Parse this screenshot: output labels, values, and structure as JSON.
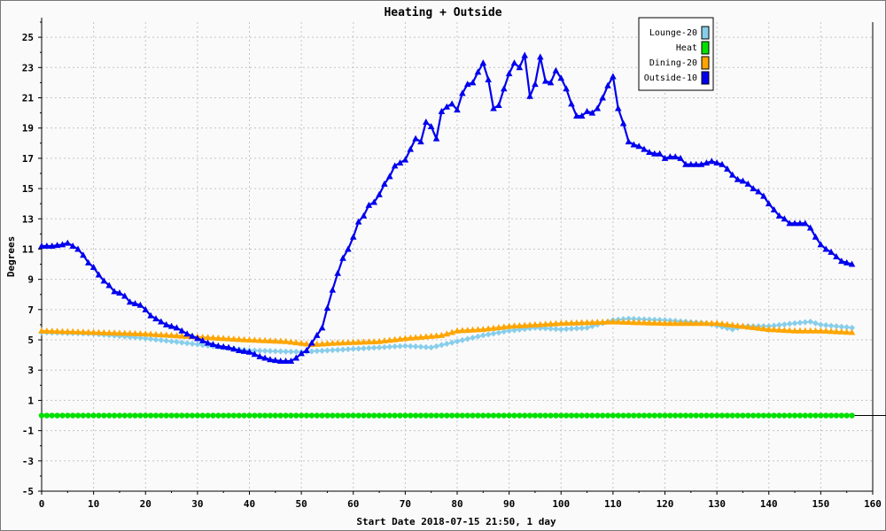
{
  "chart_data": {
    "type": "line",
    "title": "Heating + Outside",
    "xlabel": "Start Date 2018-07-15 21:50, 1 day",
    "ylabel": "Degrees",
    "xlim": [
      0,
      160
    ],
    "ylim": [
      -5,
      26
    ],
    "xticks": [
      "0",
      "10",
      "20",
      "30",
      "40",
      "50",
      "60",
      "70",
      "80",
      "90",
      "100",
      "110",
      "120",
      "130",
      "140",
      "150",
      "160"
    ],
    "yticks": [
      "25",
      "23",
      "21",
      "19",
      "17",
      "15",
      "13",
      "11",
      "9",
      "7",
      "5",
      "3",
      "1",
      "-1",
      "-3",
      "-5"
    ],
    "grid": true,
    "legend_position": "top-right",
    "series": [
      {
        "name": "Lounge-20",
        "color": "#87ceeb",
        "marker": "diamond",
        "points": [
          [
            0,
            5.5
          ],
          [
            10,
            5.4
          ],
          [
            20,
            5.1
          ],
          [
            30,
            4.7
          ],
          [
            40,
            4.3
          ],
          [
            50,
            4.2
          ],
          [
            60,
            4.4
          ],
          [
            70,
            4.6
          ],
          [
            75,
            4.5
          ],
          [
            80,
            4.9
          ],
          [
            85,
            5.3
          ],
          [
            90,
            5.6
          ],
          [
            95,
            5.8
          ],
          [
            100,
            5.7
          ],
          [
            105,
            5.8
          ],
          [
            110,
            6.3
          ],
          [
            113,
            6.4
          ],
          [
            120,
            6.3
          ],
          [
            128,
            6.1
          ],
          [
            133,
            5.7
          ],
          [
            135,
            5.9
          ],
          [
            140,
            5.9
          ],
          [
            145,
            6.1
          ],
          [
            148,
            6.2
          ],
          [
            150,
            6.0
          ],
          [
            156,
            5.8
          ]
        ]
      },
      {
        "name": "Heat",
        "color": "#00e000",
        "marker": "circle",
        "points": [
          [
            0,
            0
          ],
          [
            156,
            0
          ]
        ]
      },
      {
        "name": "Dining-20",
        "color": "#ffa500",
        "marker": "triangle",
        "points": [
          [
            0,
            5.6
          ],
          [
            10,
            5.5
          ],
          [
            20,
            5.4
          ],
          [
            30,
            5.2
          ],
          [
            40,
            5.0
          ],
          [
            47,
            4.9
          ],
          [
            52,
            4.7
          ],
          [
            57,
            4.8
          ],
          [
            65,
            4.9
          ],
          [
            70,
            5.1
          ],
          [
            77,
            5.3
          ],
          [
            80,
            5.6
          ],
          [
            85,
            5.7
          ],
          [
            90,
            5.9
          ],
          [
            100,
            6.1
          ],
          [
            110,
            6.2
          ],
          [
            120,
            6.1
          ],
          [
            130,
            6.1
          ],
          [
            140,
            5.7
          ],
          [
            145,
            5.6
          ],
          [
            150,
            5.6
          ],
          [
            156,
            5.5
          ]
        ]
      },
      {
        "name": "Outside-10",
        "color": "#0000ee",
        "marker": "triangle",
        "points": [
          [
            0,
            11.2
          ],
          [
            2,
            11.2
          ],
          [
            4,
            11.3
          ],
          [
            5,
            11.4
          ],
          [
            6,
            11.2
          ],
          [
            7,
            11.0
          ],
          [
            8,
            10.6
          ],
          [
            9,
            10.1
          ],
          [
            10,
            9.8
          ],
          [
            11,
            9.3
          ],
          [
            12,
            8.9
          ],
          [
            13,
            8.6
          ],
          [
            14,
            8.2
          ],
          [
            15,
            8.1
          ],
          [
            16,
            7.9
          ],
          [
            17,
            7.5
          ],
          [
            18,
            7.4
          ],
          [
            19,
            7.3
          ],
          [
            20,
            7.0
          ],
          [
            21,
            6.6
          ],
          [
            22,
            6.4
          ],
          [
            23,
            6.2
          ],
          [
            24,
            6.0
          ],
          [
            26,
            5.8
          ],
          [
            28,
            5.4
          ],
          [
            30,
            5.1
          ],
          [
            32,
            4.8
          ],
          [
            34,
            4.6
          ],
          [
            36,
            4.5
          ],
          [
            38,
            4.3
          ],
          [
            40,
            4.2
          ],
          [
            42,
            3.9
          ],
          [
            44,
            3.7
          ],
          [
            46,
            3.6
          ],
          [
            48,
            3.6
          ],
          [
            49,
            3.8
          ],
          [
            50,
            4.1
          ],
          [
            51,
            4.3
          ],
          [
            52,
            4.8
          ],
          [
            53,
            5.3
          ],
          [
            54,
            5.8
          ],
          [
            55,
            7.1
          ],
          [
            56,
            8.3
          ],
          [
            57,
            9.4
          ],
          [
            58,
            10.4
          ],
          [
            59,
            11.0
          ],
          [
            60,
            11.8
          ],
          [
            61,
            12.8
          ],
          [
            62,
            13.2
          ],
          [
            63,
            13.9
          ],
          [
            64,
            14.1
          ],
          [
            65,
            14.6
          ],
          [
            66,
            15.3
          ],
          [
            67,
            15.8
          ],
          [
            68,
            16.5
          ],
          [
            69,
            16.7
          ],
          [
            70,
            16.9
          ],
          [
            71,
            17.6
          ],
          [
            72,
            18.3
          ],
          [
            73,
            18.1
          ],
          [
            74,
            19.4
          ],
          [
            75,
            19.1
          ],
          [
            76,
            18.3
          ],
          [
            77,
            20.1
          ],
          [
            78,
            20.4
          ],
          [
            79,
            20.6
          ],
          [
            80,
            20.2
          ],
          [
            81,
            21.3
          ],
          [
            82,
            21.9
          ],
          [
            83,
            22.0
          ],
          [
            84,
            22.7
          ],
          [
            85,
            23.3
          ],
          [
            86,
            22.2
          ],
          [
            87,
            20.3
          ],
          [
            88,
            20.5
          ],
          [
            89,
            21.6
          ],
          [
            90,
            22.6
          ],
          [
            91,
            23.3
          ],
          [
            92,
            23.0
          ],
          [
            93,
            23.8
          ],
          [
            94,
            21.1
          ],
          [
            95,
            21.9
          ],
          [
            96,
            23.7
          ],
          [
            97,
            22.1
          ],
          [
            98,
            22.0
          ],
          [
            99,
            22.8
          ],
          [
            100,
            22.3
          ],
          [
            101,
            21.6
          ],
          [
            102,
            20.6
          ],
          [
            103,
            19.8
          ],
          [
            104,
            19.8
          ],
          [
            105,
            20.1
          ],
          [
            106,
            20.0
          ],
          [
            107,
            20.3
          ],
          [
            108,
            21.0
          ],
          [
            109,
            21.8
          ],
          [
            110,
            22.4
          ],
          [
            111,
            20.3
          ],
          [
            112,
            19.3
          ],
          [
            113,
            18.1
          ],
          [
            114,
            17.9
          ],
          [
            115,
            17.8
          ],
          [
            116,
            17.6
          ],
          [
            117,
            17.4
          ],
          [
            118,
            17.3
          ],
          [
            119,
            17.3
          ],
          [
            120,
            17.0
          ],
          [
            121,
            17.1
          ],
          [
            122,
            17.1
          ],
          [
            123,
            17.0
          ],
          [
            124,
            16.6
          ],
          [
            125,
            16.6
          ],
          [
            126,
            16.6
          ],
          [
            127,
            16.6
          ],
          [
            128,
            16.7
          ],
          [
            129,
            16.8
          ],
          [
            130,
            16.7
          ],
          [
            131,
            16.6
          ],
          [
            132,
            16.3
          ],
          [
            133,
            15.9
          ],
          [
            134,
            15.6
          ],
          [
            135,
            15.5
          ],
          [
            136,
            15.3
          ],
          [
            137,
            15.0
          ],
          [
            138,
            14.8
          ],
          [
            139,
            14.5
          ],
          [
            140,
            14.0
          ],
          [
            141,
            13.6
          ],
          [
            142,
            13.2
          ],
          [
            143,
            13.0
          ],
          [
            144,
            12.7
          ],
          [
            145,
            12.7
          ],
          [
            146,
            12.7
          ],
          [
            147,
            12.7
          ],
          [
            148,
            12.4
          ],
          [
            149,
            11.8
          ],
          [
            150,
            11.3
          ],
          [
            151,
            11.0
          ],
          [
            152,
            10.8
          ],
          [
            153,
            10.5
          ],
          [
            154,
            10.2
          ],
          [
            155,
            10.1
          ],
          [
            156,
            10.0
          ]
        ]
      }
    ]
  }
}
